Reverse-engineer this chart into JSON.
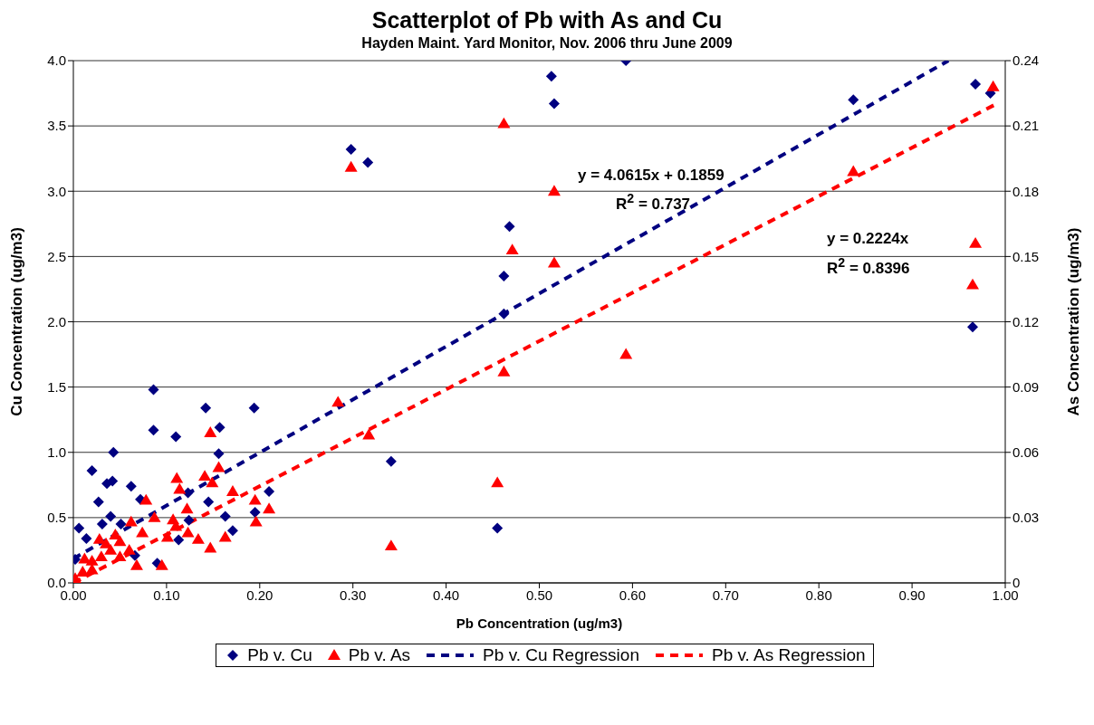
{
  "chart_data": {
    "type": "scatter",
    "title": "Scatterplot of Pb with As and Cu",
    "subtitle": "Hayden Maint. Yard Monitor, Nov. 2006 thru June 2009",
    "xlabel": "Pb Concentration (ug/m3)",
    "ylabel": "Cu Concentration (ug/m3)",
    "y2label": "As Concentration (ug/m3)",
    "xlim": [
      0,
      1
    ],
    "xticks": [
      {
        "value": 0,
        "label": "0.00"
      },
      {
        "value": 0.1,
        "label": "0.10"
      },
      {
        "value": 0.2,
        "label": "0.20"
      },
      {
        "value": 0.3,
        "label": "0.30"
      },
      {
        "value": 0.4,
        "label": "0.40"
      },
      {
        "value": 0.5,
        "label": "0.50"
      },
      {
        "value": 0.6,
        "label": "0.60"
      },
      {
        "value": 0.7,
        "label": "0.70"
      },
      {
        "value": 0.8,
        "label": "0.80"
      },
      {
        "value": 0.9,
        "label": "0.90"
      },
      {
        "value": 1,
        "label": "1.00"
      }
    ],
    "ylim": [
      0,
      4
    ],
    "yticks": [
      {
        "value": 0,
        "label": "0.0"
      },
      {
        "value": 0.5,
        "label": "0.5"
      },
      {
        "value": 1,
        "label": "1.0"
      },
      {
        "value": 1.5,
        "label": "1.5"
      },
      {
        "value": 2,
        "label": "2.0"
      },
      {
        "value": 2.5,
        "label": "2.5"
      },
      {
        "value": 3,
        "label": "3.0"
      },
      {
        "value": 3.5,
        "label": "3.5"
      },
      {
        "value": 4,
        "label": "4.0"
      }
    ],
    "y2lim": [
      0,
      0.24
    ],
    "y2ticks": [
      0,
      0.03,
      0.06,
      0.09,
      0.12,
      0.15,
      0.18,
      0.21,
      0.24
    ],
    "grid": "y",
    "legend": "bottom",
    "annotations": [
      "y = 4.0615x + 0.1859",
      "R$^{2}$ = 0.737",
      "y = 0.2224x",
      "R$^{2}$ = 0.8396"
    ],
    "series": [
      {
        "name": "Pb v. Cu",
        "type": "scatter",
        "marker": "diamond",
        "color": "#000080",
        "x": [
          0.593,
          0.513,
          0.516,
          0.837,
          0.968,
          0.984,
          0.965,
          0.298,
          0.316,
          0.468,
          0.462,
          0.462,
          0.455,
          0.341,
          0.086,
          0.142,
          0.194,
          0.086,
          0.11,
          0.157,
          0.043,
          0.156,
          0.02,
          0.036,
          0.042,
          0.062,
          0.123,
          0.21,
          0.027,
          0.072,
          0.145,
          0.195,
          0.163,
          0.171,
          0.006,
          0.04,
          0.051,
          0.124,
          0.113,
          0.09,
          0.066,
          0.031,
          0.002,
          0.014
        ],
        "values": [
          4.0,
          3.88,
          3.67,
          3.7,
          3.82,
          3.75,
          1.96,
          3.32,
          3.22,
          2.73,
          2.35,
          2.06,
          0.42,
          0.93,
          1.48,
          1.34,
          1.34,
          1.17,
          1.12,
          1.19,
          1.0,
          0.99,
          0.86,
          0.76,
          0.78,
          0.74,
          0.69,
          0.7,
          0.62,
          0.64,
          0.62,
          0.54,
          0.51,
          0.4,
          0.42,
          0.51,
          0.45,
          0.48,
          0.33,
          0.15,
          0.21,
          0.45,
          0.18,
          0.34
        ]
      },
      {
        "name": "Pb v. As",
        "type": "scatter",
        "marker": "triangle",
        "axis": "y2",
        "color": "#ff0000",
        "x": [
          0.298,
          0.462,
          0.516,
          0.516,
          0.471,
          0.462,
          0.593,
          0.341,
          0.455,
          0.837,
          0.987,
          0.968,
          0.965,
          0.317,
          0.284,
          0.147,
          0.111,
          0.114,
          0.141,
          0.156,
          0.149,
          0.171,
          0.195,
          0.196,
          0.21,
          0.122,
          0.078,
          0.087,
          0.062,
          0.107,
          0.11,
          0.101,
          0.123,
          0.134,
          0.147,
          0.163,
          0.095,
          0.068,
          0.05,
          0.074,
          0.028,
          0.012,
          0.002,
          0.01,
          0.02,
          0.03,
          0.04,
          0.05,
          0.035,
          0.045,
          0.06,
          0.02
        ],
        "values": [
          0.191,
          0.211,
          0.18,
          0.147,
          0.153,
          0.097,
          0.105,
          0.017,
          0.046,
          0.189,
          0.228,
          0.156,
          0.137,
          0.068,
          0.083,
          0.069,
          0.048,
          0.043,
          0.049,
          0.053,
          0.046,
          0.042,
          0.038,
          0.028,
          0.034,
          0.034,
          0.038,
          0.03,
          0.028,
          0.029,
          0.026,
          0.021,
          0.023,
          0.02,
          0.016,
          0.021,
          0.008,
          0.008,
          0.019,
          0.023,
          0.02,
          0.011,
          0.002,
          0.005,
          0.01,
          0.012,
          0.015,
          0.012,
          0.018,
          0.022,
          0.015,
          0.006
        ]
      },
      {
        "name": "Pb v. Cu Regression",
        "type": "line",
        "line_style": "dashed",
        "marker": "none",
        "color": "#000080",
        "x": [
          0,
          0.939
        ],
        "values": [
          0.1859,
          4.0
        ]
      },
      {
        "name": "Pb v. As Regression",
        "type": "line",
        "line_style": "dashed",
        "marker": "none",
        "axis": "y2",
        "color": "#ff0000",
        "x": [
          0,
          0.99
        ],
        "values": [
          0,
          0.22
        ]
      }
    ]
  }
}
